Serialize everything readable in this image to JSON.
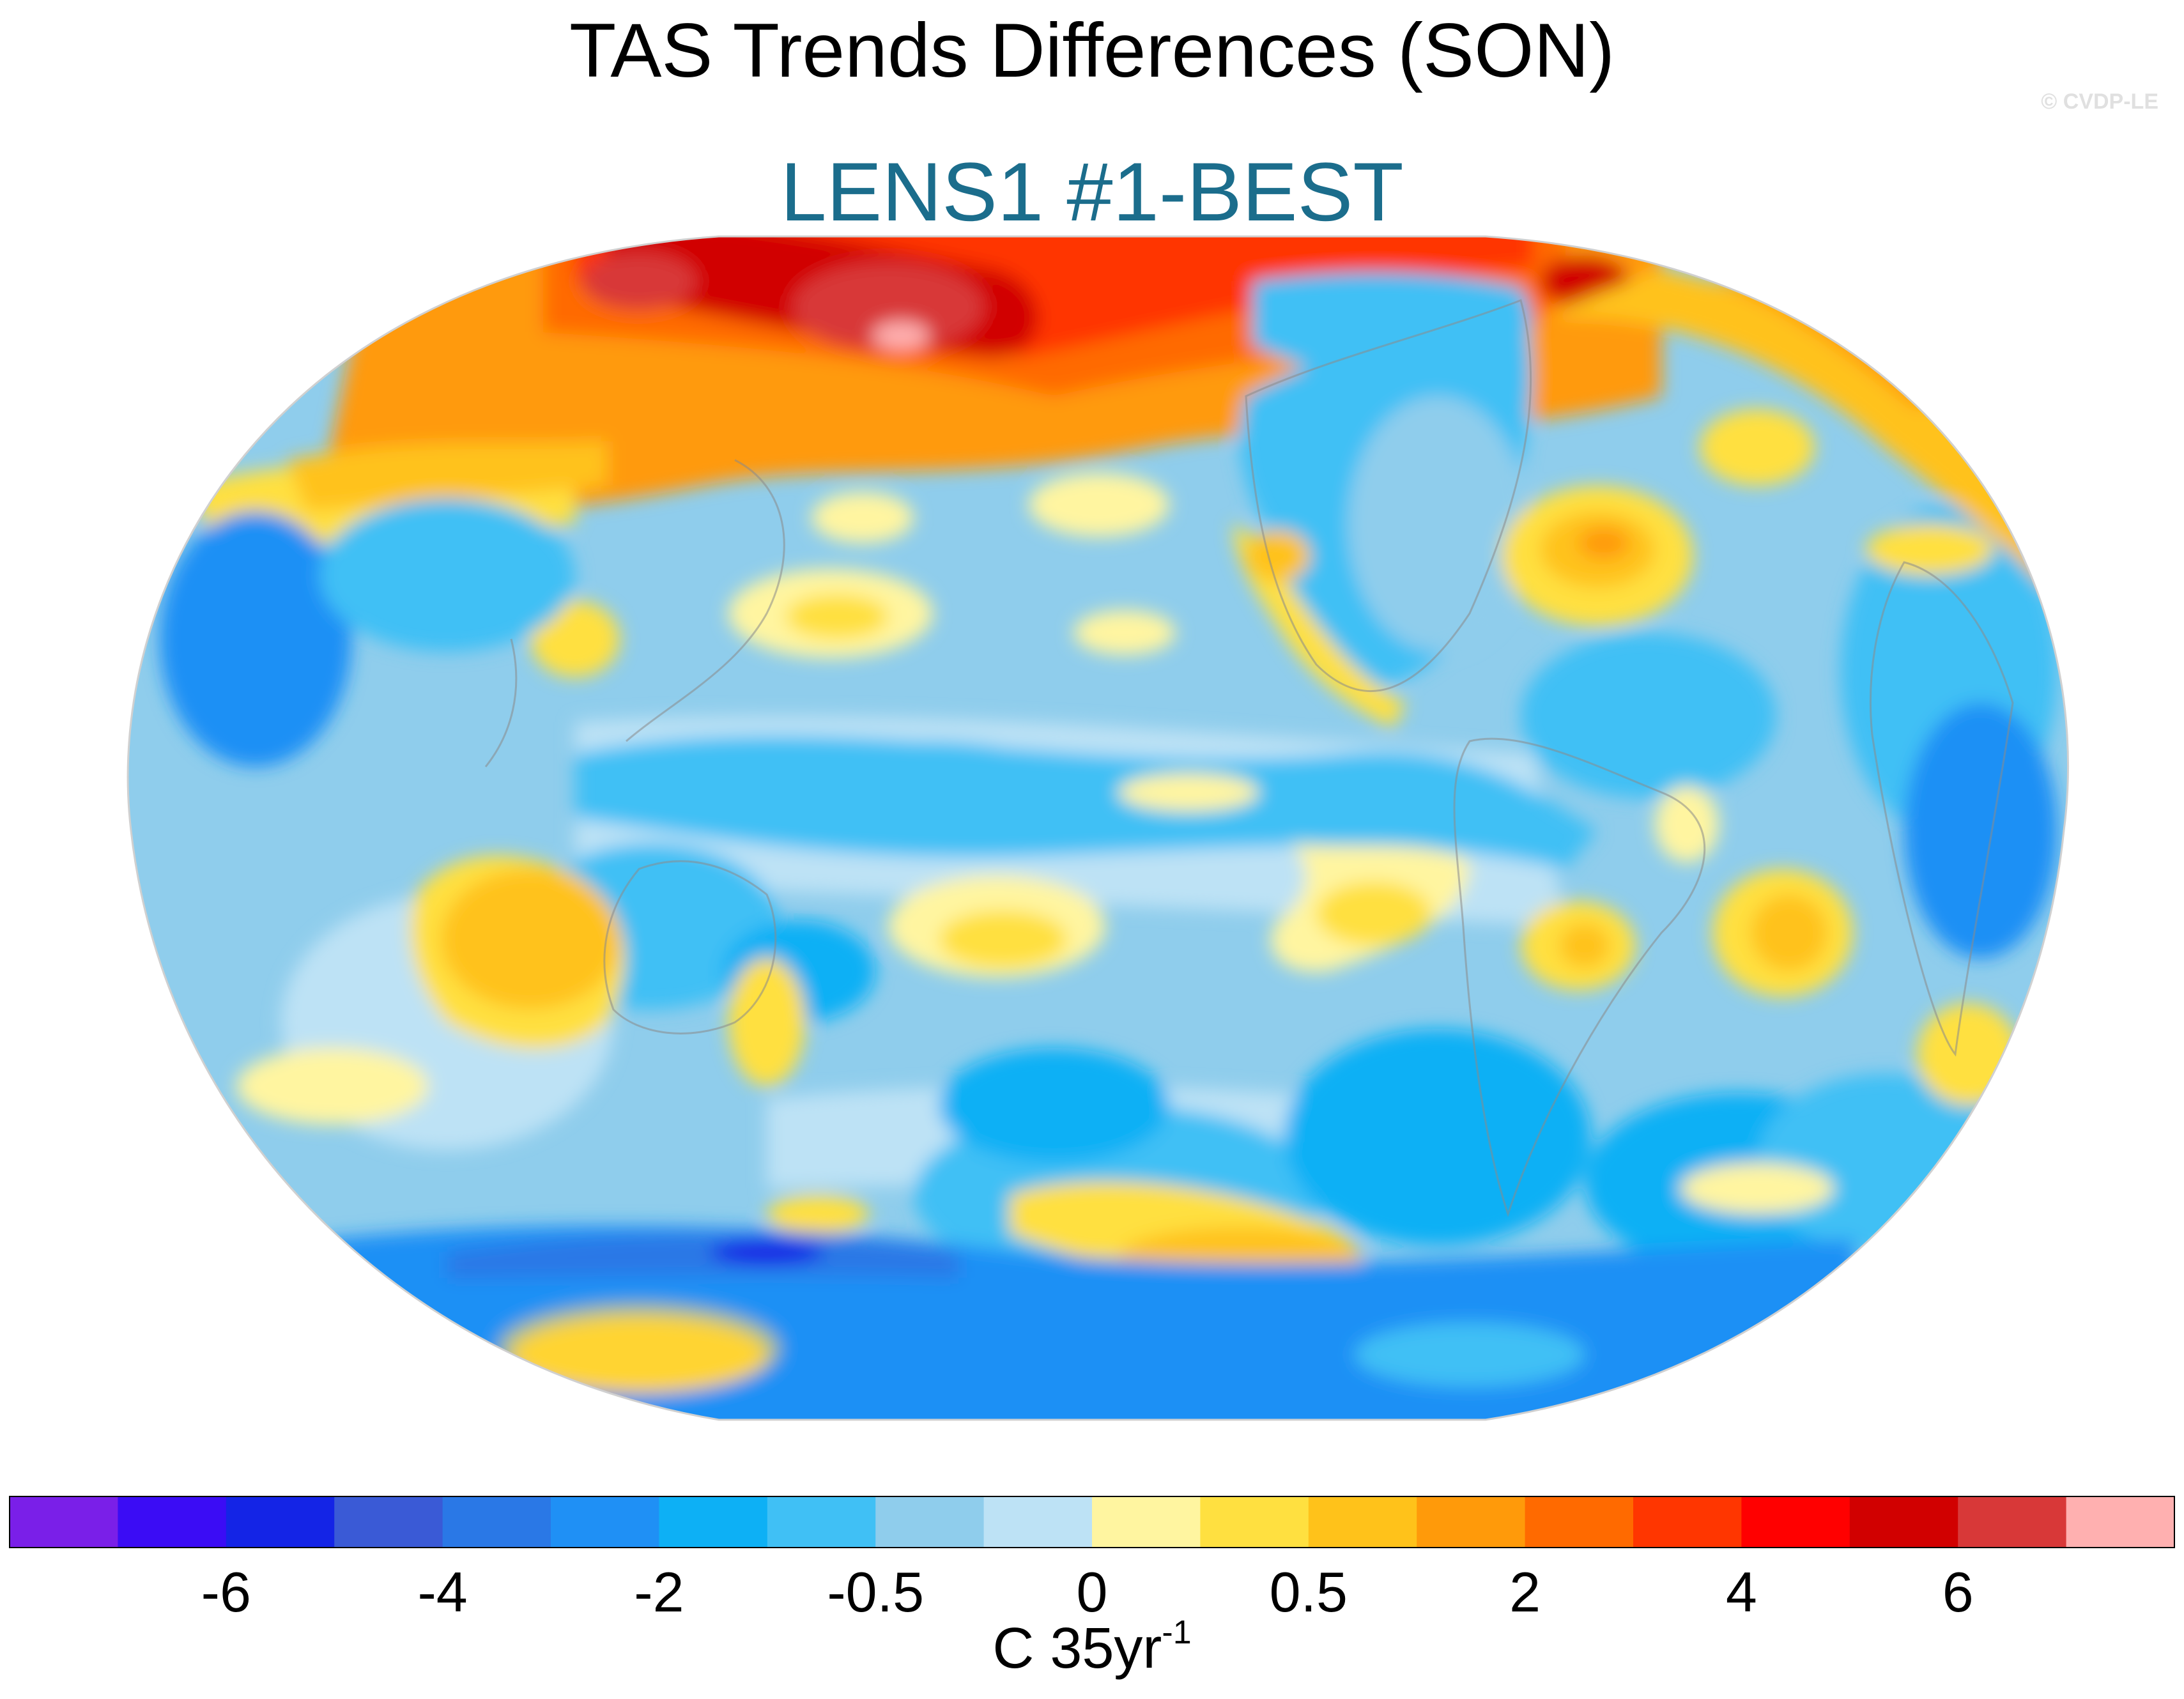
{
  "title": "TAS Trends Differences (SON)",
  "subtitle": "LENS1 #1-BEST",
  "watermark": "© CVDP-LE",
  "colors": {
    "subtitle": "#1b6d8c",
    "coastline": "#8a8a8a"
  },
  "colorbar": {
    "units_base": "C 35yr",
    "units_exp": "-1",
    "colors": [
      "#7a1fe8",
      "#3b0cf5",
      "#1424e6",
      "#3a5ad6",
      "#2a78e6",
      "#1f90f5",
      "#0db0f5",
      "#40c0f5",
      "#8fcdec",
      "#bde2f5",
      "#fff5a0",
      "#ffe040",
      "#ffc21a",
      "#ff9a0a",
      "#ff6a00",
      "#ff3600",
      "#ff0000",
      "#d10000",
      "#d83838",
      "#ffb0b0"
    ],
    "tick_labels": [
      "-6",
      "-4",
      "-2",
      "-0.5",
      "0",
      "0.5",
      "2",
      "4",
      "6"
    ]
  }
}
